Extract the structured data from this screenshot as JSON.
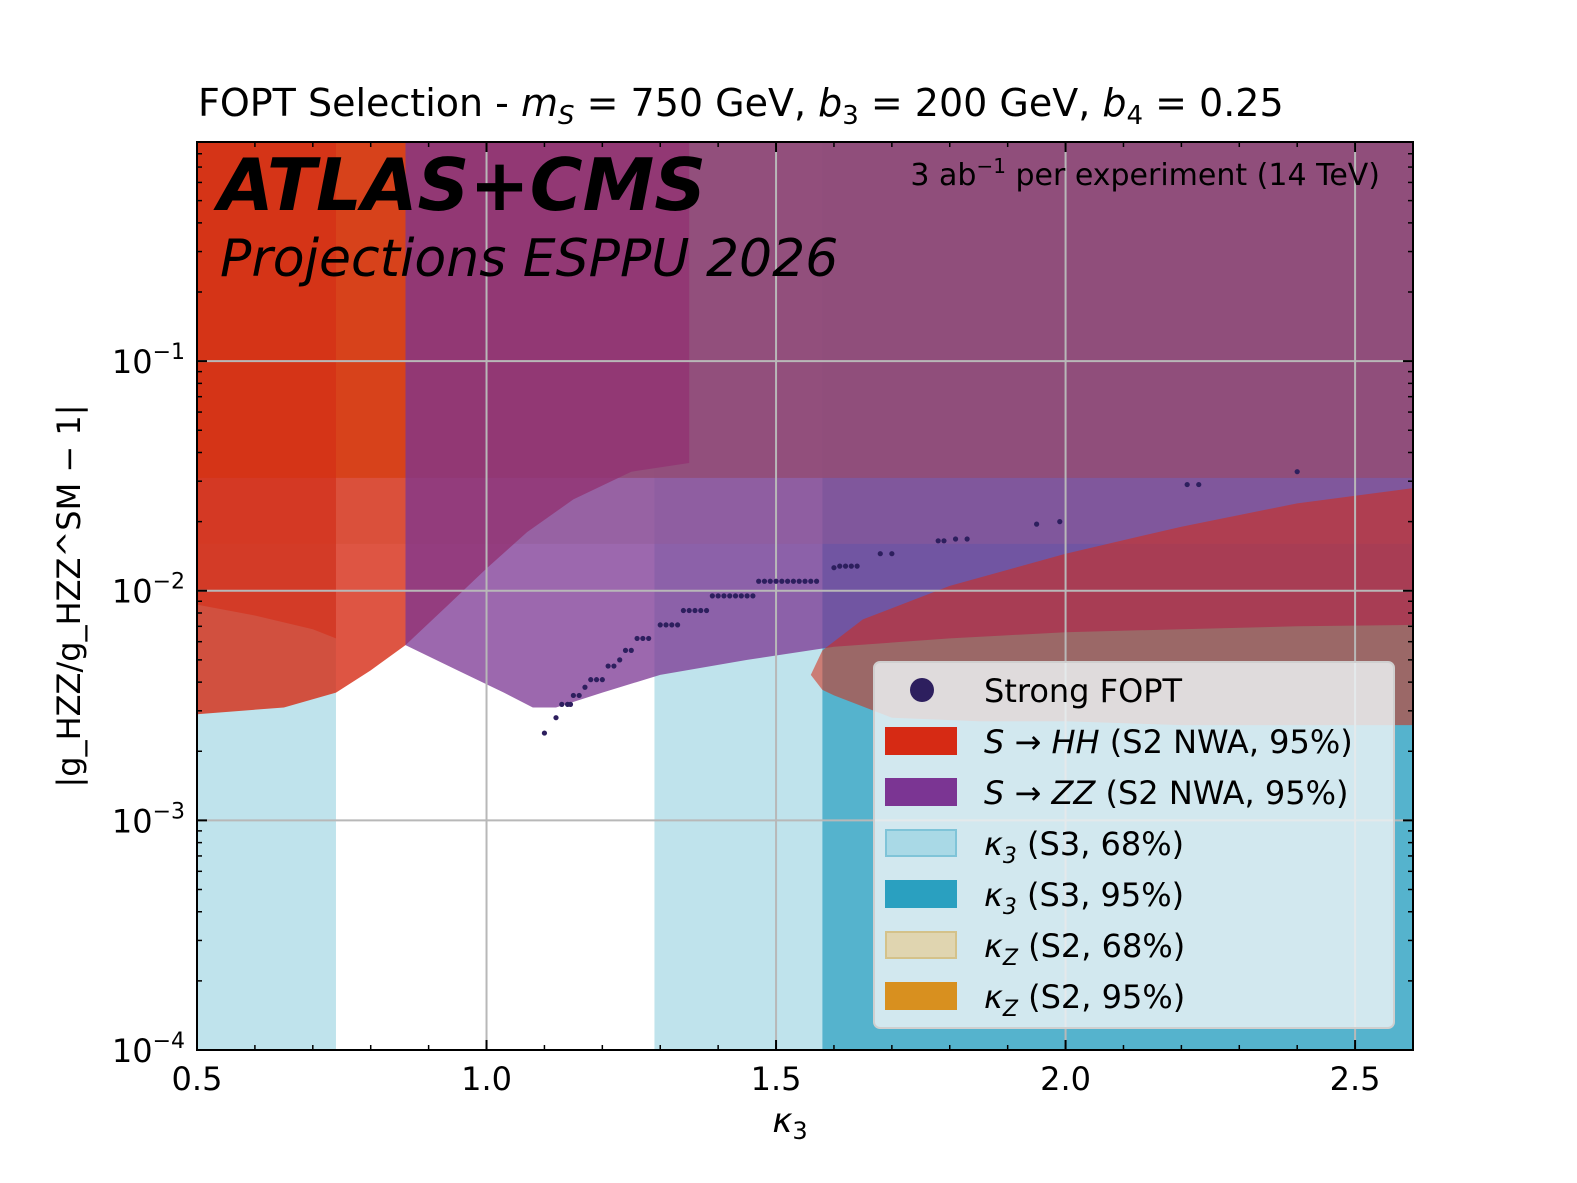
{
  "chart_data": {
    "type": "scatter",
    "title_prefix": "FOPT Selection - ",
    "title_ms_label": "m",
    "title_ms_sub": "S",
    "title_ms_value": " = 750 GeV, ",
    "title_b3_label": "b",
    "title_b3_sub": "3",
    "title_b3_value": " = 200 GeV, ",
    "title_b4_label": "b",
    "title_b4_sub": "4",
    "title_b4_value": " = 0.25",
    "experiment_label": "ATLAS+CMS",
    "projection_label": "Projections ESPPU 2026",
    "luminosity_prefix": "3 ab",
    "luminosity_exp": "−1",
    "luminosity_suffix": "  per experiment (14 TeV)",
    "xlabel_base": "κ",
    "xlabel_sub": "3",
    "ylabel": "|g_HZZ/g_HZZ^SM − 1|",
    "xlim": [
      0.5,
      2.6
    ],
    "ylim": [
      0.0001,
      0.9
    ],
    "yscale": "log",
    "grid": true,
    "x_ticks": [
      {
        "value": 0.5,
        "label": "0.5"
      },
      {
        "value": 1.0,
        "label": "1.0"
      },
      {
        "value": 1.5,
        "label": "1.5"
      },
      {
        "value": 2.0,
        "label": "2.0"
      },
      {
        "value": 2.5,
        "label": "2.5"
      }
    ],
    "y_ticks": [
      {
        "value": 0.0001,
        "base": "10",
        "exp": "−4"
      },
      {
        "value": 0.001,
        "base": "10",
        "exp": "−3"
      },
      {
        "value": 0.01,
        "base": "10",
        "exp": "−2"
      },
      {
        "value": 0.1,
        "base": "10",
        "exp": "−1"
      }
    ],
    "bands": [
      {
        "name": "kappa3-68",
        "axis": "x",
        "from": 0.5,
        "to": 0.74,
        "color": "#a9d9e6",
        "opacity": 0.75
      },
      {
        "name": "kappa3-68",
        "axis": "x",
        "from": 1.29,
        "to": 1.58,
        "color": "#a9d9e6",
        "opacity": 0.75
      },
      {
        "name": "kappa3-95",
        "axis": "x",
        "from": 1.58,
        "to": 2.6,
        "color": "#2aa0c0",
        "opacity": 0.8
      },
      {
        "name": "kappaZ-68",
        "axis": "y",
        "from": 0.016,
        "to": 0.9,
        "color": "#d4c9a0",
        "opacity": 0.45
      },
      {
        "name": "kappaZ-95",
        "axis": "y",
        "from": 0.031,
        "to": 0.9,
        "color": "#d8901f",
        "opacity": 0.85
      }
    ],
    "regions": [
      {
        "name": "S-to-HH-excluded",
        "color": "#d62a14",
        "opacity": 0.8,
        "lower": [
          [
            0.5,
            0.0029
          ],
          [
            0.65,
            0.0031
          ],
          [
            0.74,
            0.0036
          ],
          [
            0.8,
            0.0045
          ],
          [
            0.86,
            0.0058
          ],
          [
            0.93,
            0.0085
          ],
          [
            1.0,
            0.0125
          ],
          [
            1.07,
            0.018
          ],
          [
            1.15,
            0.025
          ],
          [
            1.25,
            0.033
          ],
          [
            1.35,
            0.036
          ]
        ],
        "upper": [
          [
            1.35,
            0.9
          ],
          [
            0.5,
            0.9
          ]
        ]
      },
      {
        "name": "S-to-ZZ-excluded",
        "color": "#7b3593",
        "opacity": 0.75,
        "lower": [
          [
            0.86,
            0.0058
          ],
          [
            0.95,
            0.0045
          ],
          [
            1.03,
            0.0036
          ],
          [
            1.08,
            0.0031
          ],
          [
            1.12,
            0.0031
          ],
          [
            1.2,
            0.0036
          ],
          [
            1.3,
            0.0043
          ],
          [
            1.45,
            0.005
          ],
          [
            1.6,
            0.0057
          ],
          [
            1.8,
            0.0062
          ],
          [
            2.0,
            0.0066
          ],
          [
            2.2,
            0.0068
          ],
          [
            2.4,
            0.007
          ],
          [
            2.6,
            0.0071
          ]
        ],
        "upper": [
          [
            2.6,
            0.9
          ],
          [
            0.86,
            0.9
          ]
        ]
      },
      {
        "name": "S-to-HH-excluded-secondary",
        "color": "#d62a14",
        "opacity": 0.55,
        "lower": [
          [
            0.5,
            0.0087
          ],
          [
            0.6,
            0.0078
          ],
          [
            0.7,
            0.0068
          ],
          [
            0.74,
            0.0062
          ]
        ],
        "upper": [
          [
            0.74,
            0.9
          ],
          [
            0.5,
            0.9
          ]
        ]
      },
      {
        "name": "S-to-HH-excluded-right",
        "color": "#d62a14",
        "opacity": 0.55,
        "lower": [
          [
            1.6,
            0.0035
          ],
          [
            1.7,
            0.0028
          ],
          [
            1.85,
            0.0027
          ],
          [
            2.0,
            0.0027
          ],
          [
            2.2,
            0.0026
          ],
          [
            2.4,
            0.0026
          ],
          [
            2.6,
            0.0026
          ]
        ],
        "upper": [
          [
            2.6,
            0.028
          ],
          [
            2.4,
            0.024
          ],
          [
            2.2,
            0.019
          ],
          [
            2.0,
            0.0145
          ],
          [
            1.8,
            0.0105
          ],
          [
            1.65,
            0.0075
          ],
          [
            1.58,
            0.0055
          ],
          [
            1.56,
            0.0043
          ],
          [
            1.58,
            0.0037
          ],
          [
            1.6,
            0.0035
          ]
        ]
      }
    ],
    "series": [
      {
        "name": "Strong FOPT",
        "color": "#2d1f5e",
        "points": [
          [
            1.1,
            0.0024
          ],
          [
            1.12,
            0.0028
          ],
          [
            1.13,
            0.0032
          ],
          [
            1.14,
            0.0032
          ],
          [
            1.145,
            0.0032
          ],
          [
            1.15,
            0.0035
          ],
          [
            1.16,
            0.0035
          ],
          [
            1.17,
            0.0038
          ],
          [
            1.18,
            0.0041
          ],
          [
            1.19,
            0.0041
          ],
          [
            1.2,
            0.0041
          ],
          [
            1.21,
            0.0047
          ],
          [
            1.22,
            0.0047
          ],
          [
            1.23,
            0.005
          ],
          [
            1.24,
            0.0055
          ],
          [
            1.25,
            0.0055
          ],
          [
            1.26,
            0.0062
          ],
          [
            1.27,
            0.0062
          ],
          [
            1.28,
            0.0062
          ],
          [
            1.3,
            0.0071
          ],
          [
            1.31,
            0.0071
          ],
          [
            1.32,
            0.0071
          ],
          [
            1.33,
            0.0071
          ],
          [
            1.34,
            0.0082
          ],
          [
            1.35,
            0.0082
          ],
          [
            1.36,
            0.0082
          ],
          [
            1.37,
            0.0082
          ],
          [
            1.38,
            0.0082
          ],
          [
            1.39,
            0.0095
          ],
          [
            1.4,
            0.0095
          ],
          [
            1.41,
            0.0095
          ],
          [
            1.42,
            0.0095
          ],
          [
            1.43,
            0.0095
          ],
          [
            1.44,
            0.0095
          ],
          [
            1.45,
            0.0095
          ],
          [
            1.46,
            0.0095
          ],
          [
            1.47,
            0.011
          ],
          [
            1.48,
            0.011
          ],
          [
            1.49,
            0.011
          ],
          [
            1.5,
            0.011
          ],
          [
            1.51,
            0.011
          ],
          [
            1.52,
            0.011
          ],
          [
            1.53,
            0.011
          ],
          [
            1.54,
            0.011
          ],
          [
            1.55,
            0.011
          ],
          [
            1.56,
            0.011
          ],
          [
            1.57,
            0.011
          ],
          [
            1.6,
            0.0126
          ],
          [
            1.61,
            0.0128
          ],
          [
            1.62,
            0.0128
          ],
          [
            1.63,
            0.0128
          ],
          [
            1.64,
            0.0128
          ],
          [
            1.68,
            0.0145
          ],
          [
            1.7,
            0.0145
          ],
          [
            1.78,
            0.0165
          ],
          [
            1.79,
            0.0165
          ],
          [
            1.81,
            0.0168
          ],
          [
            1.83,
            0.0168
          ],
          [
            1.95,
            0.0195
          ],
          [
            1.99,
            0.02
          ],
          [
            2.21,
            0.029
          ],
          [
            2.23,
            0.029
          ],
          [
            2.4,
            0.033
          ]
        ]
      }
    ],
    "legend": [
      {
        "name": "legend-item-strong-fopt",
        "type": "marker",
        "color": "#2d1f5e",
        "label": "Strong FOPT",
        "math": ""
      },
      {
        "name": "legend-item-s-to-hh",
        "type": "patch",
        "color": "#d62a14",
        "edge": "#d62a14",
        "math": "S → HH",
        "label": "  (S2 NWA, 95%)"
      },
      {
        "name": "legend-item-s-to-zz",
        "type": "patch",
        "color": "#7b3593",
        "edge": "#7b3593",
        "math": "S → ZZ",
        "label": "  (S2 NWA, 95%)"
      },
      {
        "name": "legend-item-kappa3-68",
        "type": "patch",
        "color": "#a9d9e6",
        "edge": "#7fc4d8",
        "math": "κ",
        "sub": "3",
        "label": "  (S3, 68%)"
      },
      {
        "name": "legend-item-kappa3-95",
        "type": "patch",
        "color": "#2aa0c0",
        "edge": "#2aa0c0",
        "math": "κ",
        "sub": "3",
        "label": "  (S3, 95%)"
      },
      {
        "name": "legend-item-kappaz-68",
        "type": "patch",
        "color": "#e0d5b0",
        "edge": "#d4c28a",
        "math": "κ",
        "sub": "Z",
        "label": "  (S2, 68%)"
      },
      {
        "name": "legend-item-kappaz-95",
        "type": "patch",
        "color": "#d8901f",
        "edge": "#d8901f",
        "math": "κ",
        "sub": "Z",
        "label": "  (S2, 95%)"
      }
    ],
    "legend_position": "lower-right"
  }
}
